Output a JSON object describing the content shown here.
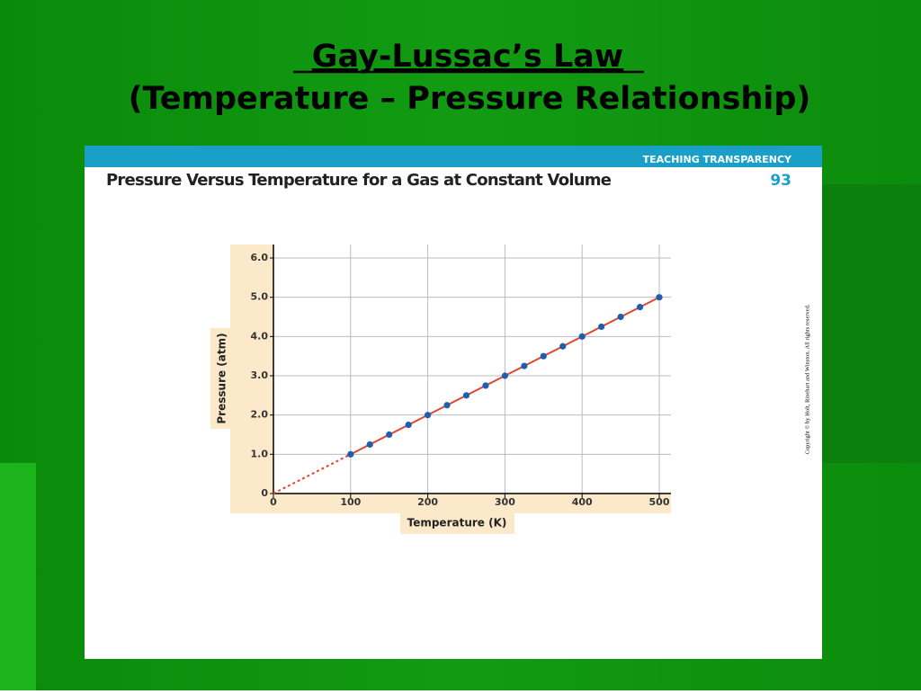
{
  "slide": {
    "title_line1": "Gay-Lussac’s Law",
    "title_line2": "(Temperature – Pressure Relationship)",
    "banner": "TEACHING TRANSPARENCY",
    "number": "93",
    "copyright": "Copyright © by Holt, Rinehart and Winston. All rights reserved."
  },
  "chart_data": {
    "type": "scatter",
    "title": "Pressure Versus Temperature for a Gas at Constant Volume",
    "x_label": "Temperature (K)",
    "y_label": "Pressure (atm)",
    "x": [
      100,
      125,
      150,
      175,
      200,
      225,
      250,
      275,
      300,
      325,
      350,
      375,
      400,
      425,
      450,
      475,
      500
    ],
    "values": [
      1.0,
      1.25,
      1.5,
      1.75,
      2.0,
      2.25,
      2.5,
      2.75,
      3.0,
      3.25,
      3.5,
      3.75,
      4.0,
      4.25,
      4.5,
      4.75,
      5.0
    ],
    "color": "#1d5fae",
    "line_color": "#e2452f",
    "extrapolation": {
      "x": [
        0,
        100
      ],
      "values": [
        0,
        1.0
      ],
      "dashed": true
    },
    "xlim": [
      0,
      500
    ],
    "ylim": [
      0,
      6.0
    ],
    "xticks": [
      0,
      100,
      200,
      300,
      400,
      500
    ],
    "yticks": [
      0,
      {
        "value": 1,
        "label": "1.0"
      },
      {
        "value": 2,
        "label": "2.0"
      },
      {
        "value": 3,
        "label": "3.0"
      },
      {
        "value": 4,
        "label": "4.0"
      },
      {
        "value": 5,
        "label": "5.0"
      },
      {
        "value": 6,
        "label": "6.0"
      }
    ],
    "grid": true
  }
}
